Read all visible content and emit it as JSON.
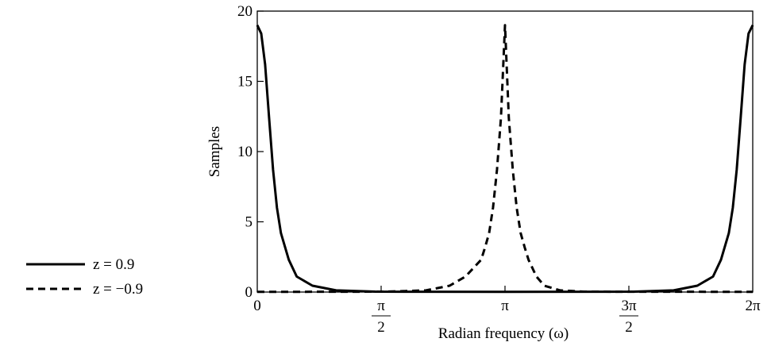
{
  "chart_data": {
    "type": "line",
    "xlabel": "Radian frequency (ω)",
    "ylabel": "Samples",
    "xlim": [
      0,
      6.283185307
    ],
    "ylim": [
      0,
      20
    ],
    "grid": false,
    "legend_position": "left",
    "y_ticks": [
      0,
      5,
      10,
      15,
      20
    ],
    "y_tick_labels": [
      "0",
      "5",
      "10",
      "15",
      "20"
    ],
    "x_ticks": [
      {
        "value": 0,
        "label": "0",
        "num": "",
        "den": ""
      },
      {
        "value": 1.570796327,
        "label": "",
        "num": "π",
        "den": "2"
      },
      {
        "value": 3.141592654,
        "label": "π",
        "num": "",
        "den": ""
      },
      {
        "value": 4.71238898,
        "label": "",
        "num": "3π",
        "den": "2"
      },
      {
        "value": 6.283185307,
        "label": "2π",
        "num": "",
        "den": ""
      }
    ],
    "series": [
      {
        "name": "z = 0.9",
        "style": "solid",
        "color": "#000000",
        "x": [
          0,
          0.05,
          0.1,
          0.15,
          0.2,
          0.25,
          0.3,
          0.4,
          0.5,
          0.7,
          1.0,
          1.5,
          2.0,
          3.14159,
          4.28,
          4.78,
          5.28,
          5.58,
          5.78,
          5.88,
          5.98,
          6.03,
          6.08,
          6.13,
          6.18,
          6.23,
          6.28319
        ],
        "y": [
          19.0,
          18.4,
          16.2,
          12.4,
          8.7,
          6.0,
          4.2,
          2.3,
          1.1,
          0.45,
          0.12,
          0.03,
          0.02,
          0.01,
          0.02,
          0.03,
          0.12,
          0.45,
          1.1,
          2.3,
          4.2,
          6.0,
          8.7,
          12.4,
          16.2,
          18.4,
          19.0
        ]
      },
      {
        "name": "z = −0.9",
        "style": "dashed",
        "color": "#000000",
        "x": [
          0,
          1.14,
          1.64,
          2.14,
          2.44,
          2.64,
          2.74,
          2.84,
          2.89,
          2.94,
          2.99,
          3.04,
          3.09,
          3.14159,
          3.19,
          3.24,
          3.29,
          3.34,
          3.39,
          3.44,
          3.54,
          3.64,
          3.84,
          4.14,
          4.64,
          5.14,
          6.28319
        ],
        "y": [
          0.01,
          0.02,
          0.03,
          0.12,
          0.45,
          1.1,
          1.7,
          2.3,
          3.2,
          4.2,
          6.0,
          8.7,
          12.4,
          19.0,
          12.4,
          8.7,
          6.0,
          4.2,
          3.2,
          2.3,
          1.1,
          0.45,
          0.12,
          0.03,
          0.02,
          0.02,
          0.01
        ]
      }
    ]
  }
}
